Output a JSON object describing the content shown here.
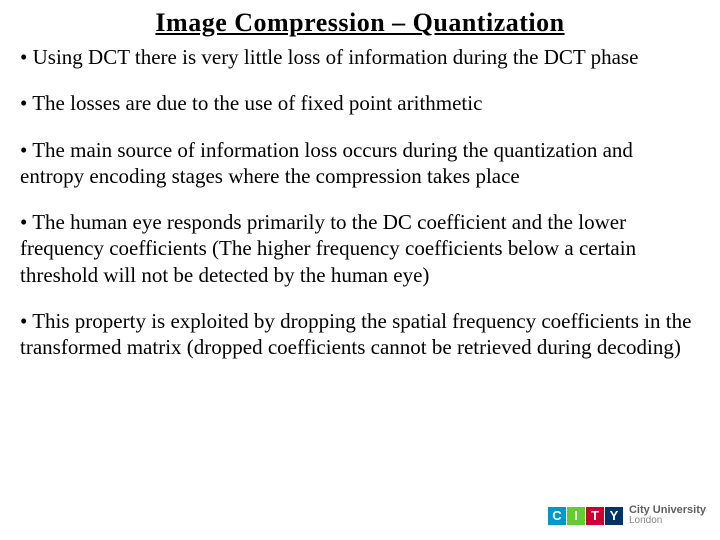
{
  "title": "Image Compression – Quantization",
  "bullets": [
    "• Using DCT there is very little loss of information during the DCT phase",
    "• The losses are due to the use of fixed point arithmetic",
    "• The main source of information loss occurs during the quantization and entropy encoding stages where the compression takes place",
    "• The human eye responds primarily to the DC coefficient and the lower frequency coefficients (The higher frequency coefficients below a certain threshold will not be detected by the human eye)",
    "•  This property is exploited by dropping the spatial frequency coefficients in the transformed matrix (dropped coefficients cannot be retrieved during decoding)"
  ],
  "logo": {
    "letters": [
      "C",
      "I",
      "T",
      "Y"
    ],
    "colors": [
      "#0099cc",
      "#66cc33",
      "#cc0033",
      "#003366"
    ],
    "text_top": "City University",
    "text_bottom": "London"
  }
}
